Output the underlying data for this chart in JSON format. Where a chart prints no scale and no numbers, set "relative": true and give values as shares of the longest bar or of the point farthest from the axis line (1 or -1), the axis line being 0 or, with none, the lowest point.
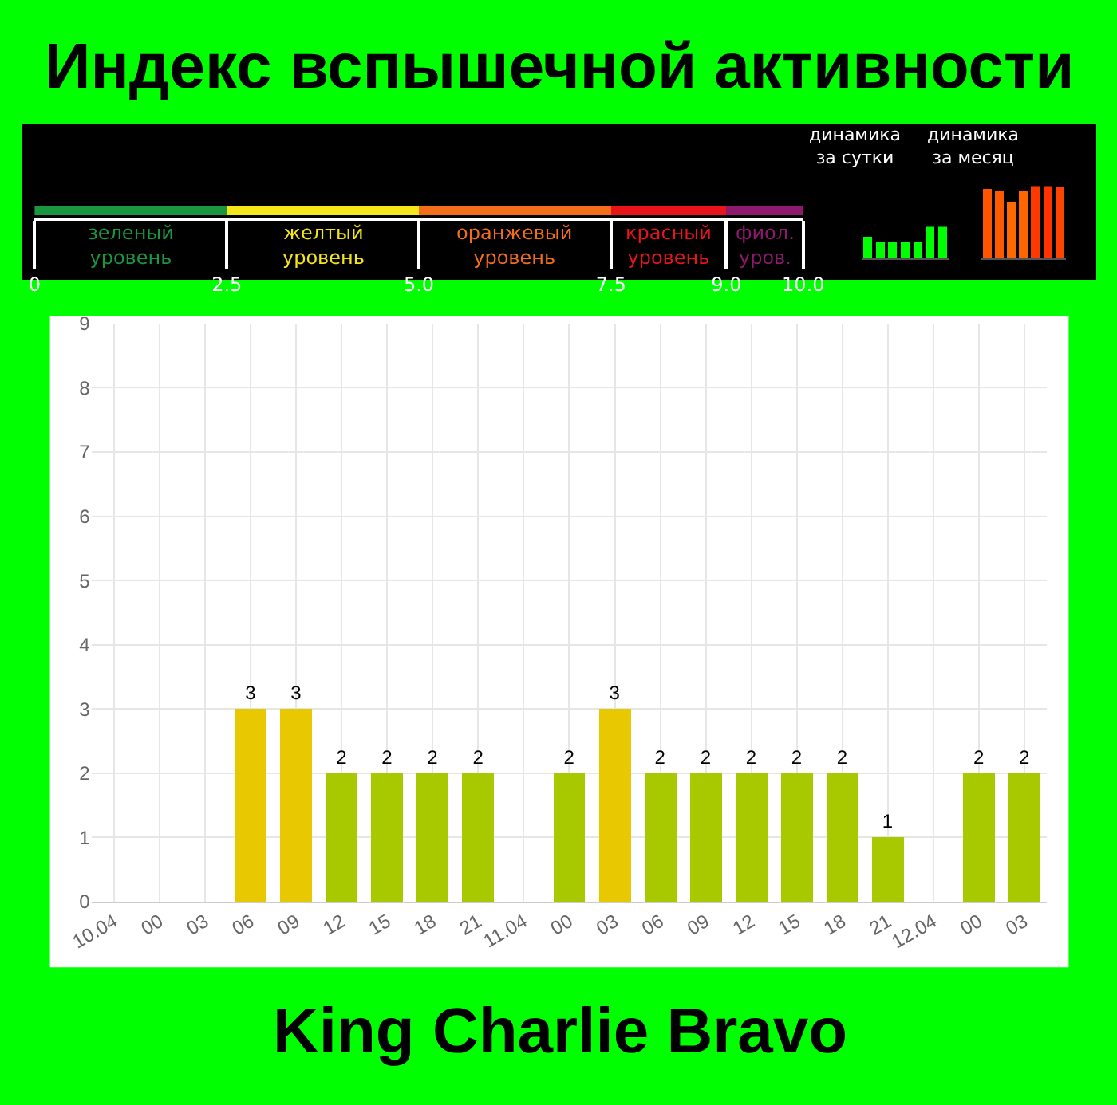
{
  "chart_data": [
    {
      "type": "bar",
      "title": "Индекс вспышечной активности",
      "orientation": "horizontal",
      "stacked": true,
      "categories": [
        null
      ],
      "xlim": [
        0,
        10
      ],
      "xticks": [
        0,
        {
          "value": 2.5,
          "label": "2.5"
        },
        {
          "value": 5,
          "label": "5.0"
        },
        {
          "value": 7.5,
          "label": "7.5"
        },
        {
          "value": 9,
          "label": "9.0"
        },
        {
          "value": 10,
          "label": "10.0"
        }
      ],
      "tick_labels": "x",
      "series": [
        {
          "name": "зеленый уровень",
          "color": "#1a9641",
          "values": [
            2.5
          ]
        },
        {
          "name": "желтый уровень",
          "color": "#f5e61a",
          "values": [
            2.5
          ]
        },
        {
          "name": "оранжевый уровень",
          "color": "#f46d1a",
          "values": [
            2.5
          ]
        },
        {
          "name": "красный уровень",
          "color": "#e8141a",
          "values": [
            1.5
          ]
        },
        {
          "name": "фиол. уров.",
          "color": "#8e1a6e",
          "values": [
            1.0
          ]
        }
      ]
    },
    {
      "type": "bar",
      "title": "динамика за сутки",
      "relative": true,
      "categories": [
        null,
        null,
        null,
        null,
        null,
        null,
        null
      ],
      "values": [
        0.67,
        0.5,
        0.5,
        0.5,
        0.5,
        1,
        1
      ],
      "color": "#00ff00"
    },
    {
      "type": "bar",
      "title": "динамика за месяц",
      "relative": true,
      "categories": [
        null,
        null,
        null,
        null,
        null,
        null,
        null
      ],
      "values": [
        0.96,
        0.93,
        0.78,
        0.93,
        1,
        1,
        0.98
      ],
      "colors": [
        "#ff5500",
        "#ff5a00",
        "#ff6a00",
        "#ff6600",
        "#ff3a00",
        "#ff3300",
        "#ff4400"
      ]
    },
    {
      "type": "bar",
      "annotations": [
        "King Charlie Bravo"
      ],
      "categories": [
        "10.04",
        "00",
        "03",
        "06",
        "09",
        "12",
        "15",
        "18",
        "21",
        "11.04",
        "00",
        "03",
        "06",
        "09",
        "12",
        "15",
        "18",
        "21",
        "12.04",
        "00",
        "03"
      ],
      "values": [
        0,
        0,
        0,
        3,
        3,
        2,
        2,
        2,
        2,
        0,
        2,
        3,
        2,
        2,
        2,
        2,
        2,
        1,
        0,
        2,
        2
      ],
      "value_labels": [
        null,
        null,
        null,
        "3",
        "3",
        "2",
        "2",
        "2",
        "2",
        null,
        "2",
        "3",
        "2",
        "2",
        "2",
        "2",
        "2",
        "1",
        null,
        "2",
        "2"
      ],
      "colors": [
        "#1a9641",
        "#1a9641",
        "#1a9641",
        "#e8c800",
        "#e8c800",
        "#a8c800",
        "#a8c800",
        "#a8c800",
        "#a8c800",
        "#1a9641",
        "#a8c800",
        "#e8c800",
        "#a8c800",
        "#a8c800",
        "#a8c800",
        "#a8c800",
        "#a8c800",
        "#a8c800",
        "#1a9641",
        "#a8c800",
        "#a8c800"
      ],
      "ylim": [
        0,
        9
      ],
      "yticks": [
        0,
        1,
        2,
        3,
        4,
        5,
        6,
        7,
        8,
        9
      ],
      "grid": true
    }
  ]
}
